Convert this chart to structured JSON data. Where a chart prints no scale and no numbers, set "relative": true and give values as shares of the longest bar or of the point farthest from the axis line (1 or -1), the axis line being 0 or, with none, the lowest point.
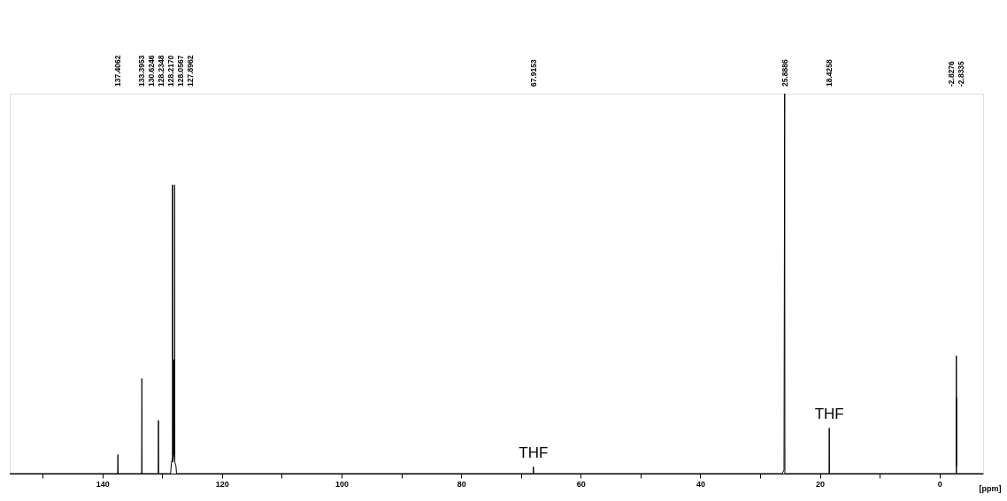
{
  "chart_data": {
    "type": "line",
    "relative": true,
    "xlabel": "[ppm]",
    "xlim": [
      155.5,
      -7.3
    ],
    "xticks": [
      {
        "value": 150,
        "label": null
      },
      140,
      {
        "value": 130,
        "label": null
      },
      120,
      {
        "value": 110,
        "label": null
      },
      100,
      {
        "value": 90,
        "label": null
      },
      80,
      {
        "value": 70,
        "label": null
      },
      60,
      {
        "value": 50,
        "label": null
      },
      40,
      {
        "value": 30,
        "label": null
      },
      20,
      {
        "value": 10,
        "label": null
      },
      0
    ],
    "grid": false,
    "marker": "none",
    "line_style": "solid",
    "series": [
      {
        "color": "#000000",
        "x": [
          155.5,
          137.45,
          137.4062,
          137.37,
          133.43,
          133.3953,
          133.36,
          130.66,
          130.6246,
          130.59,
          128.6,
          128.45,
          128.2438,
          128.2348,
          128.2258,
          128.217,
          128.208,
          128.0657,
          128.0567,
          128.0477,
          127.9052,
          127.8962,
          127.8872,
          127.7,
          127.6,
          67.95,
          67.9153,
          67.88,
          26.3,
          26.0,
          25.8886,
          25.85,
          18.46,
          18.4258,
          18.39,
          -2.824,
          -2.8276,
          -2.8306,
          -2.8335,
          -2.837,
          -7.3
        ],
        "values": [
          0,
          0,
          0.05,
          0,
          0,
          0.25,
          0,
          0,
          0.14,
          0,
          0,
          0.03,
          0.04,
          0.76,
          0.03,
          0.76,
          0.03,
          0.05,
          0.3,
          0.05,
          0.05,
          0.76,
          0.03,
          0.02,
          0,
          0,
          0.018,
          0,
          0,
          0.01,
          1.0,
          0,
          0,
          0.12,
          0,
          0,
          0.31,
          0.02,
          0.2,
          0,
          0
        ]
      }
    ],
    "annotations": [
      "137.4062",
      "133.3953",
      "130.6246",
      "128.2348",
      "128.2170",
      "128.0567",
      "127.8962",
      "67.9153",
      "25.8886",
      "18.4258",
      "-2.8276",
      "-2.8335",
      {
        "text": "THF",
        "x": 67.9153,
        "y": 0.018
      },
      {
        "text": "THF",
        "x": 18.4258,
        "y": 0.12
      }
    ]
  }
}
